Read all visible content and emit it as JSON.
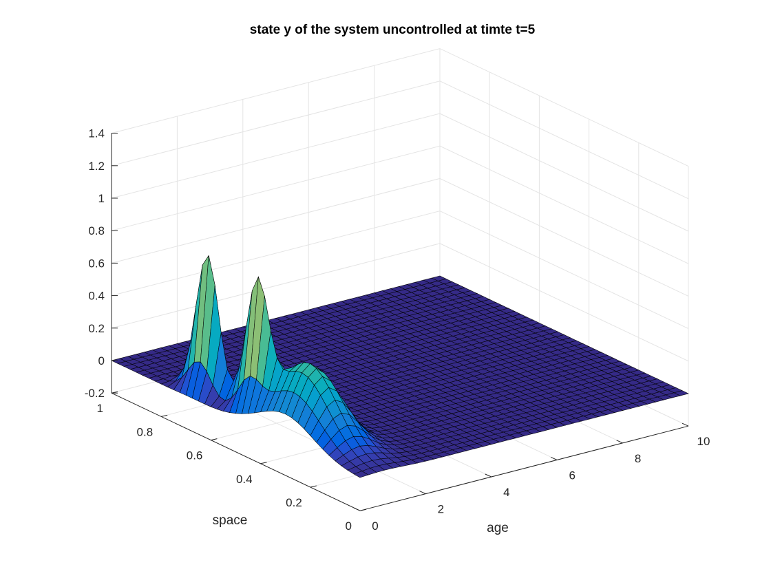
{
  "chart_data": {
    "type": "surface",
    "title": "state y of the system uncontrolled at timte t=5",
    "xlabel": "age",
    "ylabel": "space",
    "zlabel": "",
    "xlim": [
      0,
      10
    ],
    "ylim": [
      0,
      1
    ],
    "zlim": [
      -0.2,
      1.4
    ],
    "xticks": [
      0,
      2,
      4,
      6,
      8,
      10
    ],
    "yticks": [
      0,
      0.2,
      0.4,
      0.6,
      0.8,
      1
    ],
    "zticks": [
      -0.2,
      0,
      0.2,
      0.4,
      0.6,
      0.8,
      1,
      1.2,
      1.4
    ],
    "xtick_labels": [
      "0",
      "2",
      "4",
      "6",
      "8",
      "10"
    ],
    "ytick_labels": [
      "0",
      "0.2",
      "0.4",
      "0.6",
      "0.8",
      "1"
    ],
    "ztick_labels": [
      "-0.2",
      "0",
      "0.2",
      "0.4",
      "0.6",
      "0.8",
      "1",
      "1.2",
      "1.4"
    ],
    "grid": true,
    "colormap": "parula",
    "grid_resolution": {
      "nx": 41,
      "ny": 41
    },
    "peaks": [
      {
        "age": 0.5,
        "space": 0.68,
        "height": 0.86,
        "sigma_age": 0.15,
        "sigma_space": 0.045
      },
      {
        "age": 0.5,
        "space": 0.48,
        "height": 0.76,
        "sigma_age": 0.15,
        "sigma_space": 0.045
      },
      {
        "age": 0.75,
        "space": 0.3,
        "height": 0.45,
        "sigma_age": 0.55,
        "sigma_space": 0.11
      }
    ],
    "notes_visible": []
  }
}
